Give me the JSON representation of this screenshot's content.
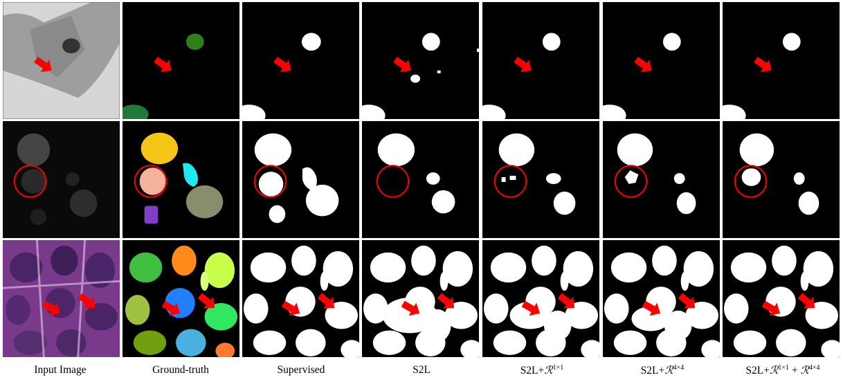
{
  "figure": {
    "columns": [
      {
        "id": "input",
        "label": "Input Image"
      },
      {
        "id": "gt",
        "label": "Ground-truth"
      },
      {
        "id": "supervised",
        "label": "Supervised"
      },
      {
        "id": "s2l",
        "label": "S2L"
      },
      {
        "id": "r1",
        "label": "S2L+",
        "sym": "ℛ",
        "sup": "1×1"
      },
      {
        "id": "r4",
        "label": "S2L+",
        "sym": "ℛ",
        "sup": "4×4"
      },
      {
        "id": "r14",
        "label": "S2L+",
        "sym": "ℛ",
        "sup": "1×1",
        "mid": " + ",
        "sym2": "ℛ",
        "sup2": "4×4"
      }
    ],
    "rows": [
      "row-1-arrow",
      "row-2-circle",
      "row-3-arrows"
    ],
    "colors": {
      "arrow": "#ff0000",
      "mask_fg": "#ffffff",
      "mask_bg": "#000000",
      "gt_row1": [
        "#2f7f1c",
        "#1f7a3a"
      ],
      "gt_row2": [
        "#f5c518",
        "#f4b49b",
        "#1fe8f0",
        "#8a8d6c",
        "#7f3fc6"
      ]
    }
  }
}
